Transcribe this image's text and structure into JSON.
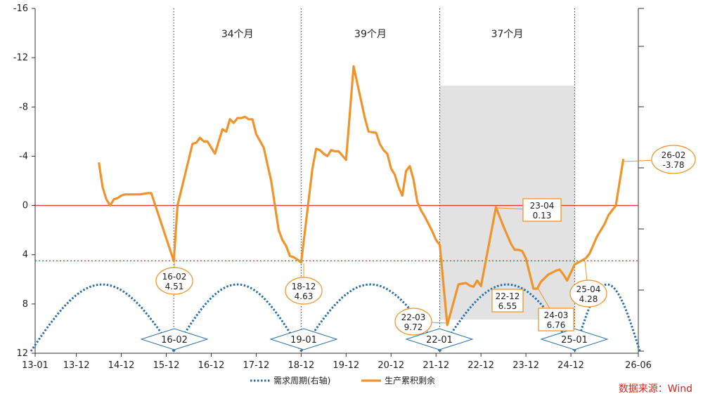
{
  "chart_data": {
    "type": "line",
    "left_axis": {
      "min": -16,
      "max": 12,
      "reversed": true,
      "ticks": [
        "-16",
        "-12",
        "-8",
        "-4",
        "0",
        "4",
        "8",
        "12"
      ]
    },
    "x_tick_labels": [
      "13-01",
      "13-12",
      "14-12",
      "15-12",
      "16-12",
      "17-12",
      "18-12",
      "19-12",
      "20-12",
      "21-12",
      "22-12",
      "23-12",
      "24-12",
      "26-06"
    ],
    "series": [
      {
        "name": "需求周期(右轴)",
        "color": "#2a6fa8",
        "style": "dotted"
      },
      {
        "name": "生产累积剩余",
        "color": "#f0932b",
        "style": "solid",
        "points": [
          [
            "2014-06",
            -3.5
          ],
          [
            "2014-07",
            -1.5
          ],
          [
            "2014-08",
            -0.5
          ],
          [
            "2014-09",
            0
          ],
          [
            "2014-10",
            -0.5
          ],
          [
            "2014-11",
            -0.6
          ],
          [
            "2014-12",
            -0.8
          ],
          [
            "2015-01",
            -0.9
          ],
          [
            "2015-03",
            -0.9
          ],
          [
            "2015-05",
            -0.9
          ],
          [
            "2015-07",
            -1.0
          ],
          [
            "2015-08",
            -1.0
          ],
          [
            "2016-02",
            4.51
          ],
          [
            "2016-03",
            0.0
          ],
          [
            "2016-05",
            -2.5
          ],
          [
            "2016-07",
            -5.0
          ],
          [
            "2016-08",
            -5.1
          ],
          [
            "2016-09",
            -5.5
          ],
          [
            "2016-10",
            -5.2
          ],
          [
            "2016-11",
            -5.2
          ],
          [
            "2017-01",
            -4.2
          ],
          [
            "2017-03",
            -6.2
          ],
          [
            "2017-04",
            -6.0
          ],
          [
            "2017-05",
            -7.0
          ],
          [
            "2017-06",
            -6.7
          ],
          [
            "2017-07",
            -7.1
          ],
          [
            "2017-08",
            -7.1
          ],
          [
            "2017-09",
            -7.2
          ],
          [
            "2017-10",
            -7.0
          ],
          [
            "2017-11",
            -7.0
          ],
          [
            "2017-12",
            -5.8
          ],
          [
            "2018-02",
            -4.7
          ],
          [
            "2018-04",
            -2.0
          ],
          [
            "2018-06",
            2.0
          ],
          [
            "2018-07",
            2.8
          ],
          [
            "2018-08",
            3.3
          ],
          [
            "2018-09",
            4.1
          ],
          [
            "2018-10",
            4.2
          ],
          [
            "2018-11",
            4.4
          ],
          [
            "2018-12",
            4.63
          ],
          [
            "2019-03",
            -3.0
          ],
          [
            "2019-04",
            -4.6
          ],
          [
            "2019-05",
            -4.5
          ],
          [
            "2019-06",
            -4.2
          ],
          [
            "2019-07",
            -4.0
          ],
          [
            "2019-08",
            -4.5
          ],
          [
            "2019-09",
            -4.4
          ],
          [
            "2019-10",
            -4.4
          ],
          [
            "2019-12",
            -3.7
          ],
          [
            "2020-02",
            -11.3
          ],
          [
            "2020-05",
            -7.1
          ],
          [
            "2020-06",
            -6.0
          ],
          [
            "2020-08",
            -5.9
          ],
          [
            "2020-09",
            -5.0
          ],
          [
            "2020-10",
            -4.5
          ],
          [
            "2020-11",
            -4.2
          ],
          [
            "2020-12",
            -3.0
          ],
          [
            "2021-01",
            -2.5
          ],
          [
            "2021-02",
            -1.5
          ],
          [
            "2021-03",
            -0.8
          ],
          [
            "2021-04",
            -2.8
          ],
          [
            "2021-05",
            -3.2
          ],
          [
            "2021-06",
            -2.1
          ],
          [
            "2021-07",
            -0.3
          ],
          [
            "2021-08",
            0.4
          ],
          [
            "2021-09",
            0.9
          ],
          [
            "2021-10",
            1.5
          ],
          [
            "2021-11",
            2.1
          ],
          [
            "2021-12",
            2.8
          ],
          [
            "2022-01",
            3.2
          ],
          [
            "2022-03",
            9.72
          ],
          [
            "2022-06",
            6.4
          ],
          [
            "2022-08",
            6.3
          ],
          [
            "2022-09",
            6.5
          ],
          [
            "2022-10",
            6.6
          ],
          [
            "2022-11",
            6.1
          ],
          [
            "2022-12",
            6.55
          ],
          [
            "2023-04",
            0.13
          ],
          [
            "2023-06",
            1.7
          ],
          [
            "2023-08",
            3.1
          ],
          [
            "2023-09",
            3.6
          ],
          [
            "2023-10",
            3.6
          ],
          [
            "2023-11",
            3.7
          ],
          [
            "2023-12",
            4.3
          ],
          [
            "2024-02",
            6.76
          ],
          [
            "2024-03",
            6.76
          ],
          [
            "2024-04",
            6.2
          ],
          [
            "2024-06",
            5.6
          ],
          [
            "2024-08",
            5.3
          ],
          [
            "2024-09",
            5.2
          ],
          [
            "2024-10",
            5.6
          ],
          [
            "2024-11",
            6.1
          ],
          [
            "2025-01",
            4.8
          ],
          [
            "2025-04",
            4.28
          ],
          [
            "2025-05",
            3.9
          ],
          [
            "2025-07",
            2.5
          ],
          [
            "2025-09",
            1.5
          ],
          [
            "2025-10",
            0.8
          ],
          [
            "2025-11",
            0.4
          ],
          [
            "2025-12",
            0.0
          ],
          [
            "2026-02",
            -3.78
          ]
        ]
      }
    ],
    "demand_troughs": [
      "16-02",
      "19-01",
      "22-01",
      "25-01"
    ],
    "period_labels": [
      "34个月",
      "39个月",
      "37个月"
    ],
    "callouts": [
      {
        "date": "16-02",
        "value": "4.51"
      },
      {
        "date": "18-12",
        "value": "4.63"
      },
      {
        "date": "22-03",
        "value": "9.72"
      },
      {
        "date": "22-12",
        "value": "6.55"
      },
      {
        "date": "23-04",
        "value": "0.13"
      },
      {
        "date": "24-03",
        "value": "6.76"
      },
      {
        "date": "25-04",
        "value": "4.28"
      },
      {
        "date": "26-02",
        "value": "-3.78"
      }
    ],
    "reference_lines": [
      {
        "style": "solid",
        "color": "#e8383d",
        "value": 0
      },
      {
        "style": "dotted",
        "color": "#e8383d",
        "value": 4.5
      }
    ],
    "shaded_period": {
      "from": "2022-01",
      "to": "2025-01"
    },
    "legend_position": "bottom-center"
  },
  "source_note": "数据来源：Wind"
}
